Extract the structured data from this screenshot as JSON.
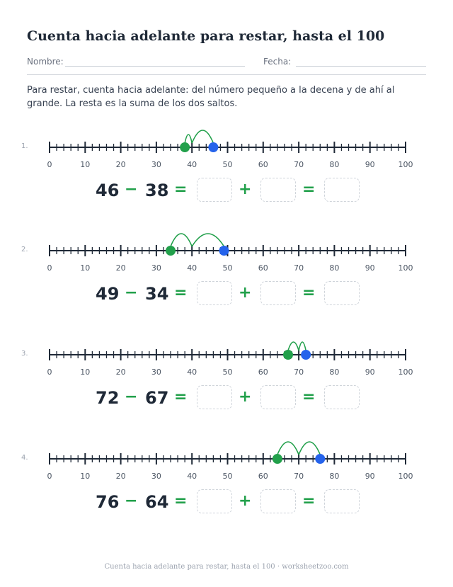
{
  "title": "Cuenta hacia adelante para restar, hasta el 100",
  "fields": {
    "name_label": "Nombre:",
    "date_label": "Fecha:"
  },
  "instructions": "Para restar, cuenta hacia adelante: del número pequeño a la decena y de ahí al grande. La resta es la suma de los dos saltos.",
  "axis": {
    "min": 0,
    "max": 100,
    "tick_labels": [
      "0",
      "10",
      "20",
      "30",
      "40",
      "50",
      "60",
      "70",
      "80",
      "90",
      "100"
    ]
  },
  "operators": {
    "minus": "−",
    "equals": "=",
    "plus": "+"
  },
  "colors": {
    "start_dot": "#22a04b",
    "end_dot": "#2563eb",
    "jump_arc": "#22a04b",
    "operator": "#22a04b"
  },
  "problems": [
    {
      "label": "1.",
      "minuend": "46",
      "subtrahend": "38",
      "start": 38,
      "ten": 40,
      "end": 46
    },
    {
      "label": "2.",
      "minuend": "49",
      "subtrahend": "34",
      "start": 34,
      "ten": 40,
      "end": 49
    },
    {
      "label": "3.",
      "minuend": "72",
      "subtrahend": "67",
      "start": 67,
      "ten": 70,
      "end": 72
    },
    {
      "label": "4.",
      "minuend": "76",
      "subtrahend": "64",
      "start": 64,
      "ten": 70,
      "end": 76
    }
  ],
  "footer": "Cuenta hacia adelante para restar, hasta el 100 · worksheetzoo.com"
}
